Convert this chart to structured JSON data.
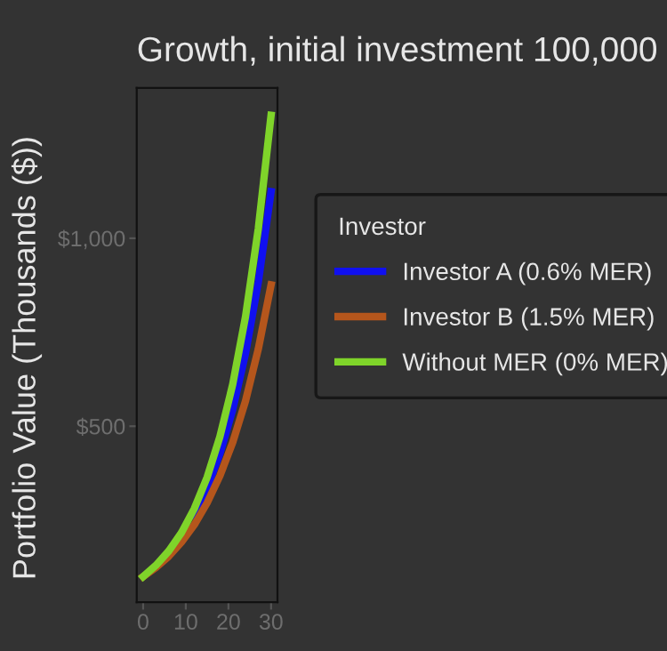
{
  "chart_data": {
    "type": "line",
    "title": "Growth, initial investment 100,000",
    "ylabel": "Portfolio Value (Thousands ($))",
    "legend_title": "Investor",
    "x": [
      0,
      3,
      6,
      9,
      12,
      15,
      18,
      21,
      24,
      27,
      30
    ],
    "series": [
      {
        "name": "Investor A (0.6% MER)",
        "color": "#1010f0",
        "values": [
          null,
          null,
          null,
          null,
          263,
          335,
          427,
          544,
          693,
          883,
          1124
        ]
      },
      {
        "name": "Investor B (1.5% MER)",
        "color": "#b5561c",
        "values": [
          100,
          124,
          154,
          192,
          238,
          296,
          368,
          457,
          567,
          705,
          876
        ]
      },
      {
        "name": "Without MER (0% MER)",
        "color": "#7fd42a",
        "values": [
          100,
          130,
          168,
          217,
          281,
          364,
          472,
          611,
          791,
          1025,
          1327
        ]
      }
    ],
    "xlim": [
      -1.5,
      31.5
    ],
    "ylim": [
      32,
      1400
    ],
    "xticks": [
      0,
      10,
      20,
      30
    ],
    "yticks": [
      {
        "value": 500,
        "label": "$500"
      },
      {
        "value": 1000,
        "label": "$1,000"
      }
    ],
    "grid": false,
    "legend": "right",
    "marker": "none",
    "line_style": "solid"
  }
}
